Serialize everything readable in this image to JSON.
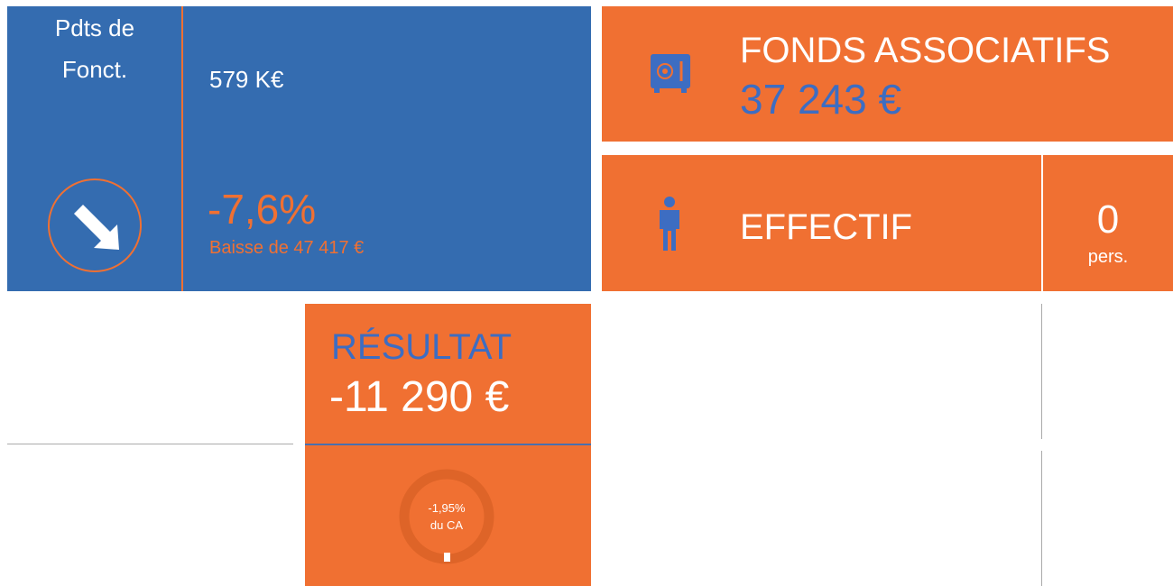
{
  "tiles": {
    "produits": {
      "title_lines": [
        "Pdts de",
        "Fonct."
      ],
      "amount": "579 K€",
      "change": "-7,6%",
      "change_detail": "Baisse de 47 417 €"
    },
    "fonds": {
      "title": "FONDS ASSOCIATIFS",
      "amount": "37 243 €"
    },
    "effectif": {
      "title": "EFFECTIF",
      "count": "0",
      "unit": "pers."
    },
    "resultat": {
      "title": "RÉSULTAT",
      "amount": "-11 290 €",
      "ratio": "-1,95%",
      "ratio_label": "du CA"
    }
  }
}
